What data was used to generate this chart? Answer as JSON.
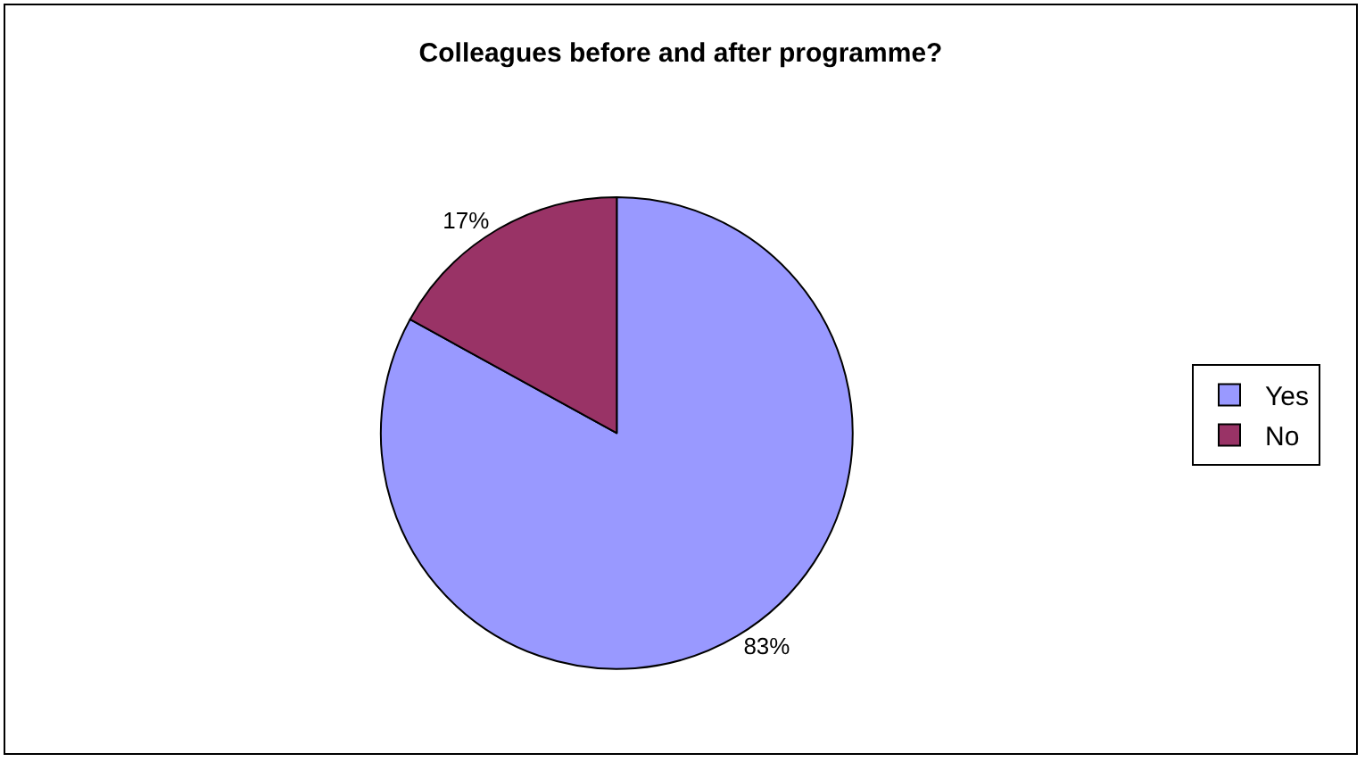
{
  "chart_data": {
    "type": "pie",
    "title": "Colleagues before and after programme?",
    "categories": [
      "Yes",
      "No"
    ],
    "values": [
      83,
      17
    ],
    "value_labels": [
      "83%",
      "17%"
    ],
    "colors": [
      "#9999ff",
      "#993366"
    ],
    "legend": "right"
  }
}
